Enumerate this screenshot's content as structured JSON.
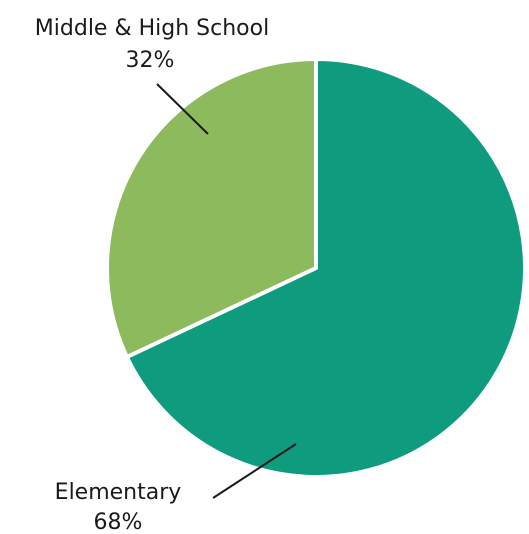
{
  "chart_data": {
    "type": "pie",
    "slices": [
      {
        "label": "Elementary",
        "value": 68,
        "value_label": "68%",
        "color": "#0f9b7e"
      },
      {
        "label": "Middle & High School",
        "value": 32,
        "value_label": "32%",
        "color": "#8dba5d"
      }
    ],
    "start_angle_deg": 0,
    "direction": "clockwise",
    "separator_color": "#ffffff",
    "legend": "none",
    "title": ""
  }
}
